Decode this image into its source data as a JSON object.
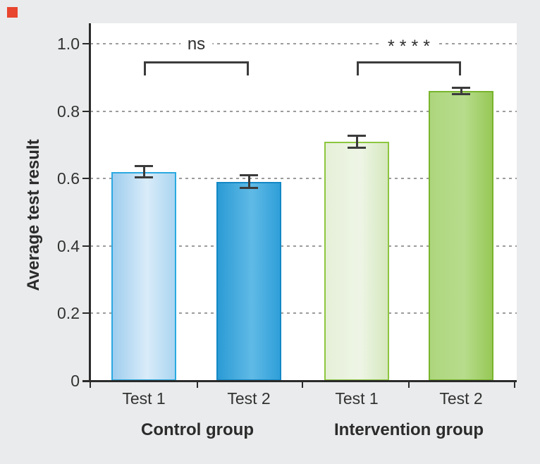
{
  "figure": {
    "background_color": "#eaebec",
    "marker_color": "#e8462f"
  },
  "chart_data": {
    "type": "bar",
    "title": "",
    "xlabel": "",
    "ylabel": "Average test result",
    "ylim": [
      0,
      1.06
    ],
    "yticks": [
      0,
      0.2,
      0.4,
      0.6,
      0.8,
      1.0
    ],
    "ytick_labels": [
      "0",
      "0.2",
      "0.4",
      "0.6",
      "0.8",
      "1.0"
    ],
    "grid": "horizontal-dashed",
    "legend_position": "none",
    "axis_color": "#2b2b2b",
    "gridline_color": "#9c9c9c",
    "error_bar_color": "#3b3b3b",
    "bracket_color": "#3c3c3c",
    "groups": [
      {
        "label": "Control group",
        "significance": "ns",
        "bars": [
          {
            "label": "Test 1",
            "value": 0.62,
            "error": 0.02,
            "fill": [
              "#9fcdee",
              "#d9ecf9",
              "#abd5f1"
            ],
            "border": "#2aa9e1"
          },
          {
            "label": "Test 2",
            "value": 0.59,
            "error": 0.022,
            "fill": [
              "#2b9bd5",
              "#60bae6",
              "#2f9fd9"
            ],
            "border": "#1488c5"
          }
        ]
      },
      {
        "label": "Intervention group",
        "significance": "****",
        "bars": [
          {
            "label": "Test 1",
            "value": 0.71,
            "error": 0.021,
            "fill": [
              "#e6f0d8",
              "#eef5e6",
              "#d6e8bf"
            ],
            "border": "#8dc63f"
          },
          {
            "label": "Test 2",
            "value": 0.86,
            "error": 0.012,
            "fill": [
              "#aed67e",
              "#b7dc8c",
              "#97c857"
            ],
            "border": "#79b42d"
          }
        ]
      }
    ]
  }
}
